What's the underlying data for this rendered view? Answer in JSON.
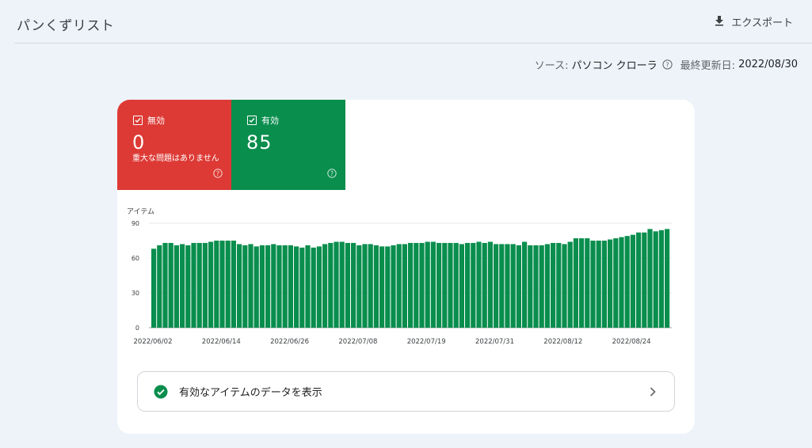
{
  "header": {
    "title": "パンくずリスト",
    "export_label": "エクスポート"
  },
  "meta": {
    "source_label": "ソース:",
    "source_value": "パソコン クローラ",
    "updated_label": "最終更新日:",
    "updated_value": "2022/08/30"
  },
  "tiles": {
    "invalid": {
      "label": "無効",
      "value": "0",
      "sub": "重大な問題はありません",
      "color": "#dd3a35"
    },
    "valid": {
      "label": "有効",
      "value": "85",
      "color": "#098e4d"
    }
  },
  "detail_link": {
    "label": "有効なアイテムのデータを表示"
  },
  "chart_data": {
    "type": "bar",
    "ylabel": "アイテム",
    "ylim": [
      0,
      90
    ],
    "yticks": [
      0,
      30,
      60,
      90
    ],
    "xtick_labels": [
      "2022/06/02",
      "2022/06/14",
      "2022/06/26",
      "2022/07/08",
      "2022/07/19",
      "2022/07/31",
      "2022/08/12",
      "2022/08/24"
    ],
    "start_label": "2022/06/02",
    "bar_color": "#098e4d",
    "values": [
      68,
      71,
      73,
      73,
      71,
      72,
      71,
      73,
      73,
      73,
      74,
      75,
      75,
      75,
      75,
      72,
      71,
      72,
      70,
      71,
      71,
      72,
      71,
      71,
      71,
      70,
      69,
      71,
      69,
      70,
      72,
      73,
      74,
      74,
      73,
      73,
      71,
      72,
      72,
      71,
      70,
      70,
      71,
      72,
      72,
      73,
      73,
      73,
      74,
      74,
      73,
      73,
      73,
      73,
      72,
      73,
      73,
      74,
      73,
      74,
      72,
      72,
      72,
      72,
      71,
      74,
      71,
      71,
      71,
      72,
      73,
      73,
      72,
      74,
      77,
      77,
      77,
      75,
      75,
      75,
      76,
      77,
      78,
      79,
      80,
      82,
      82,
      85,
      83,
      84,
      85
    ]
  }
}
